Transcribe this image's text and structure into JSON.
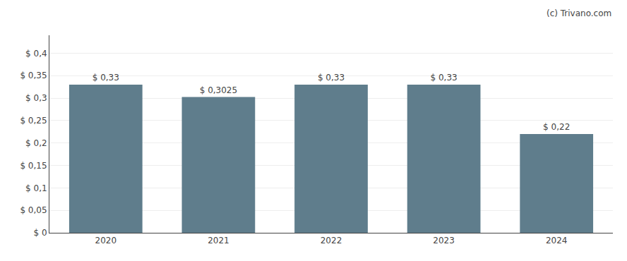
{
  "chart_data": {
    "type": "bar",
    "categories": [
      "2020",
      "2021",
      "2022",
      "2023",
      "2024"
    ],
    "values": [
      0.33,
      0.3025,
      0.33,
      0.33,
      0.22
    ],
    "value_labels": [
      "$ 0,33",
      "$ 0,3025",
      "$ 0,33",
      "$ 0,33",
      "$ 0,22"
    ],
    "data_labels": true,
    "color": "#5f7d8c",
    "ylim": [
      0,
      0.44
    ],
    "yticks": [
      {
        "value": 0,
        "label": "$ 0"
      },
      {
        "value": 0.05,
        "label": "$ 0,05"
      },
      {
        "value": 0.1,
        "label": "$ 0,1"
      },
      {
        "value": 0.15,
        "label": "$ 0,15"
      },
      {
        "value": 0.2,
        "label": "$ 0,2"
      },
      {
        "value": 0.25,
        "label": "$ 0,25"
      },
      {
        "value": 0.3,
        "label": "$ 0,3"
      },
      {
        "value": 0.35,
        "label": "$ 0,35"
      },
      {
        "value": 0.4,
        "label": "$ 0,4"
      }
    ],
    "grid": true,
    "annotations": [
      "(c) Trivano.com"
    ]
  }
}
